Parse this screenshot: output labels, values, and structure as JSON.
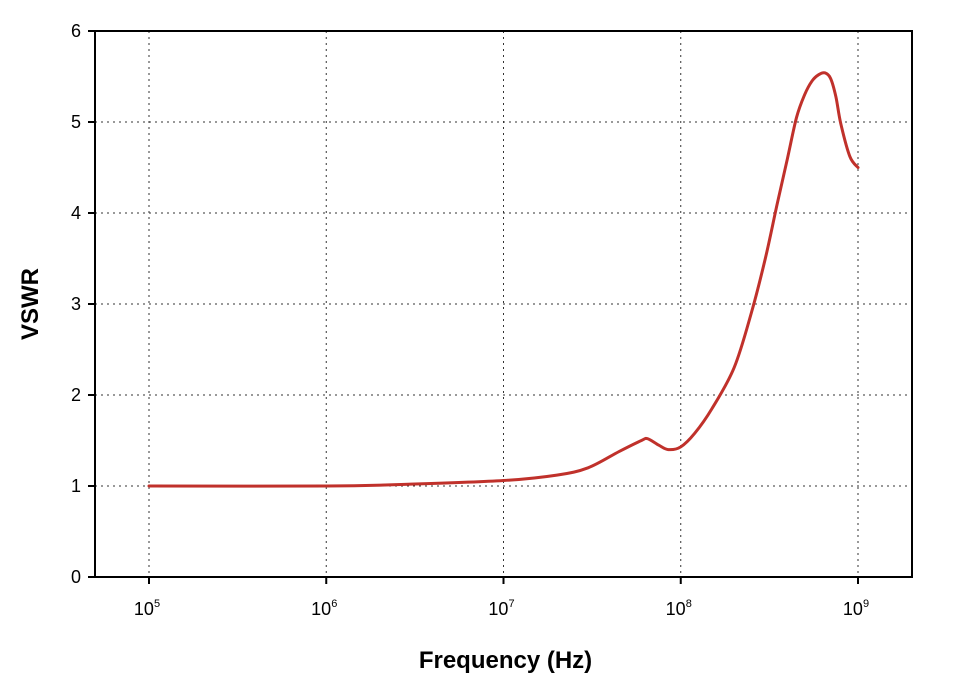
{
  "chart_data": {
    "type": "line",
    "title": "",
    "xlabel": "Frequency (Hz)",
    "ylabel": "VSWR",
    "x_scale": "log",
    "xlim": [
      100000,
      1000000000
    ],
    "ylim": [
      0,
      6
    ],
    "x_ticks": [
      {
        "value": 100000,
        "base": "10",
        "exp": "5"
      },
      {
        "value": 1000000,
        "base": "10",
        "exp": "6"
      },
      {
        "value": 10000000,
        "base": "10",
        "exp": "7"
      },
      {
        "value": 100000000,
        "base": "10",
        "exp": "8"
      },
      {
        "value": 1000000000,
        "base": "10",
        "exp": "9"
      }
    ],
    "y_ticks": [
      "0",
      "1",
      "2",
      "3",
      "4",
      "5",
      "6"
    ],
    "grid": true,
    "series": [
      {
        "color": "#c0312b",
        "x": [
          100000,
          1000000,
          3000000,
          10000000,
          20000000,
          30000000,
          45000000,
          60000000,
          65000000,
          75000000,
          85000000,
          100000000,
          120000000,
          150000000,
          200000000,
          250000000,
          300000000,
          350000000,
          400000000,
          450000000,
          500000000,
          550000000,
          600000000,
          650000000,
          700000000,
          750000000,
          800000000,
          900000000,
          1000000000
        ],
        "y": [
          1.0,
          1.0,
          1.02,
          1.06,
          1.12,
          1.2,
          1.38,
          1.5,
          1.52,
          1.45,
          1.4,
          1.43,
          1.58,
          1.85,
          2.3,
          2.9,
          3.5,
          4.1,
          4.6,
          5.05,
          5.3,
          5.45,
          5.52,
          5.54,
          5.48,
          5.28,
          4.98,
          4.62,
          4.5
        ]
      }
    ]
  }
}
